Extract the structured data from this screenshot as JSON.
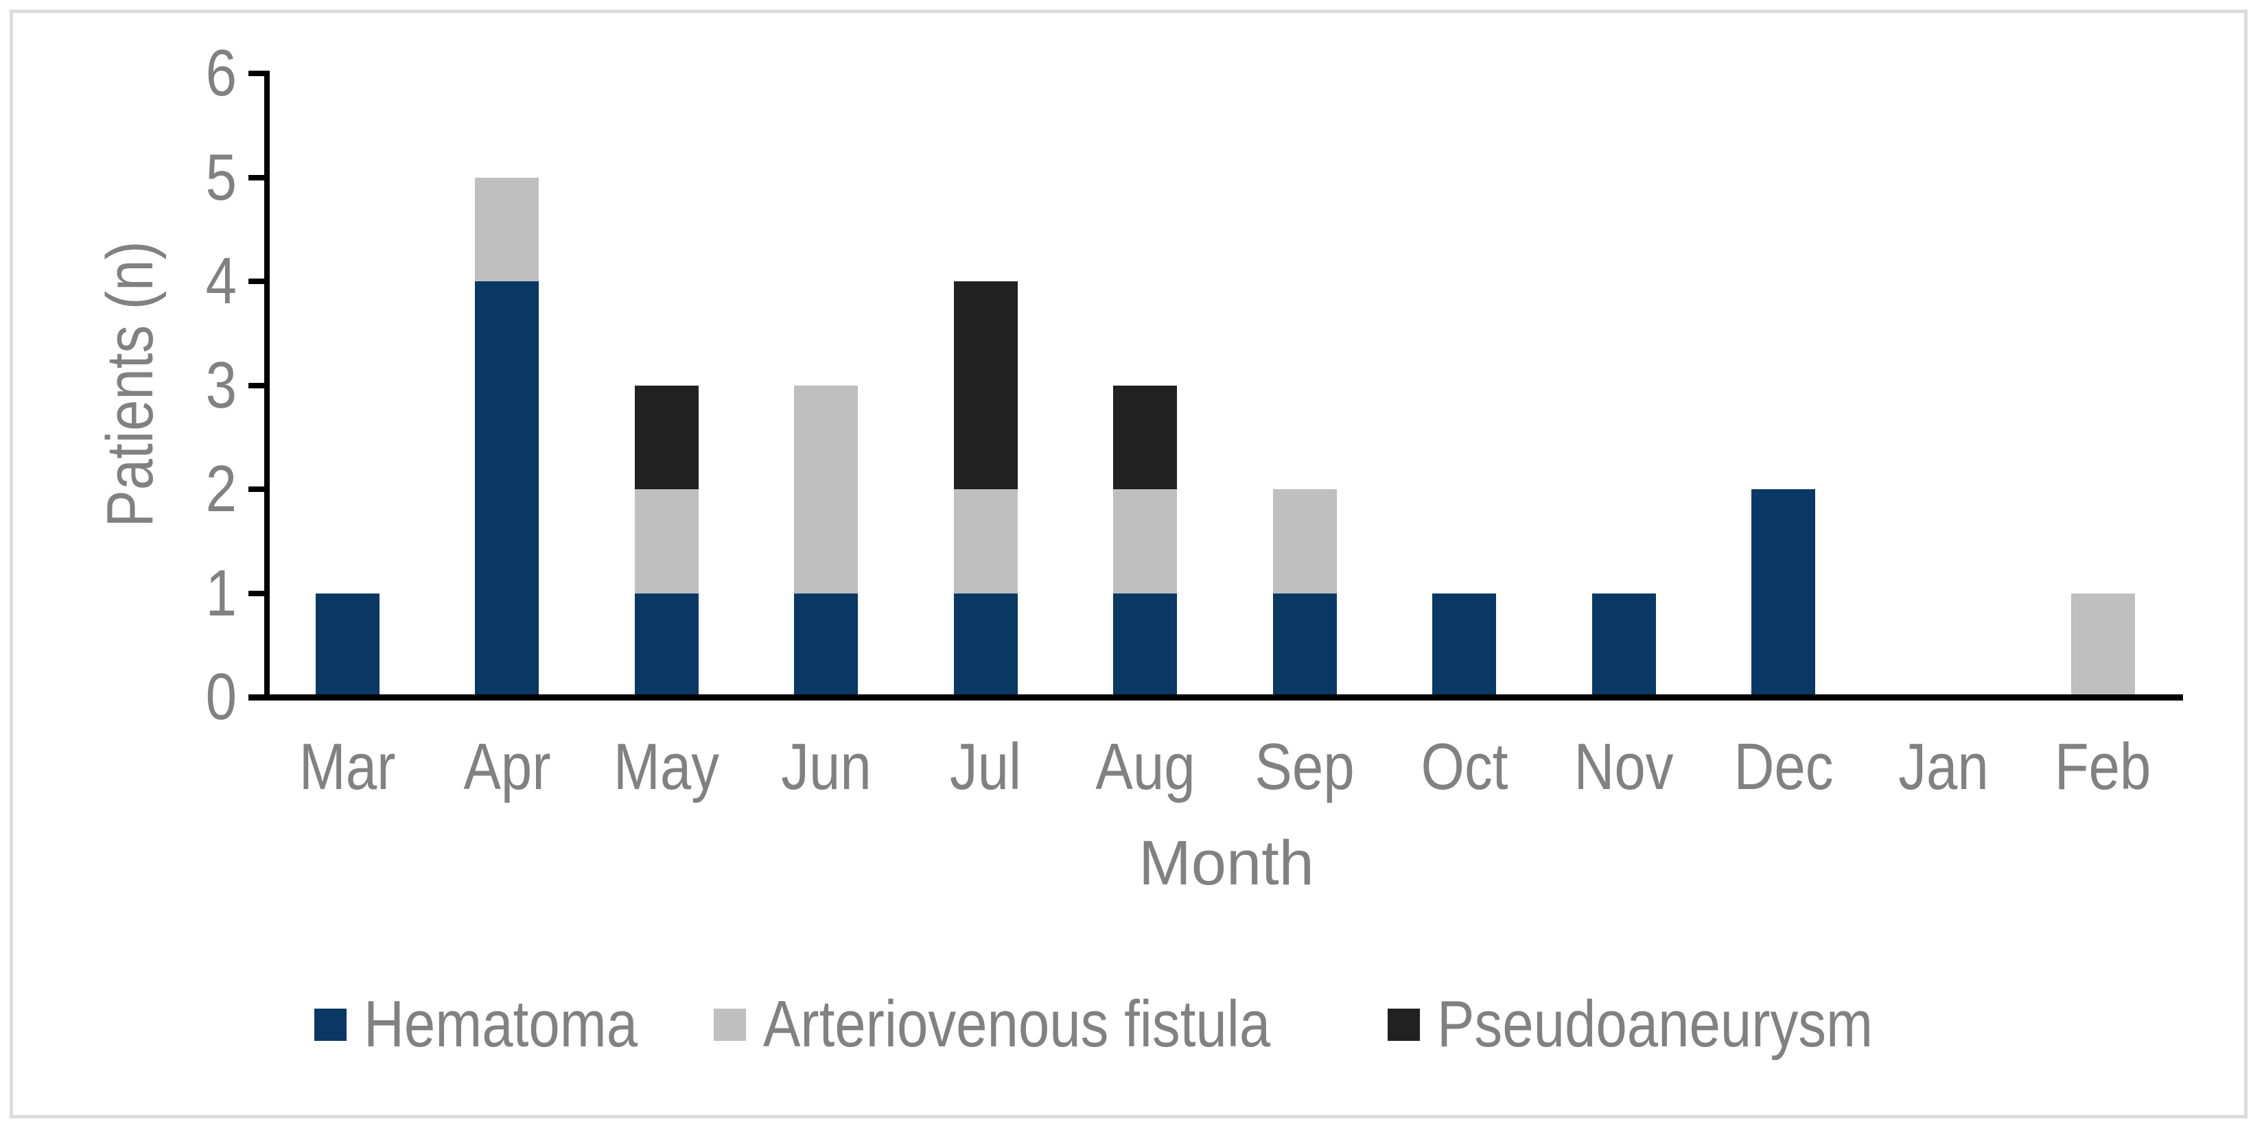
{
  "chart_data": {
    "type": "bar",
    "stacked": true,
    "orientation": "vertical",
    "title": "",
    "xlabel": "Month",
    "ylabel": "Patients (n)",
    "categories": [
      "Mar",
      "Apr",
      "May",
      "Jun",
      "Jul",
      "Aug",
      "Sep",
      "Oct",
      "Nov",
      "Dec",
      "Jan",
      "Feb"
    ],
    "series": [
      {
        "name": "Hematoma",
        "color": "#0A3864",
        "values": [
          1,
          4,
          1,
          1,
          1,
          1,
          1,
          1,
          1,
          2,
          0,
          0
        ]
      },
      {
        "name": "Arteriovenous fistula",
        "color": "#BFBFBF",
        "values": [
          0,
          1,
          1,
          2,
          1,
          1,
          1,
          0,
          0,
          0,
          0,
          1
        ]
      },
      {
        "name": "Pseudoaneurysm",
        "color": "#212121",
        "values": [
          0,
          0,
          1,
          0,
          2,
          1,
          0,
          0,
          0,
          0,
          0,
          0
        ]
      }
    ],
    "ylim": [
      0,
      6
    ],
    "yticks": [
      0,
      1,
      2,
      3,
      4,
      5,
      6
    ],
    "grid": false,
    "legend_position": "bottom"
  },
  "style": {
    "background": "#FFFFFF",
    "frame_border_color": "#DCDCDC",
    "axis_color": "#000000",
    "label_color": "#818181"
  }
}
